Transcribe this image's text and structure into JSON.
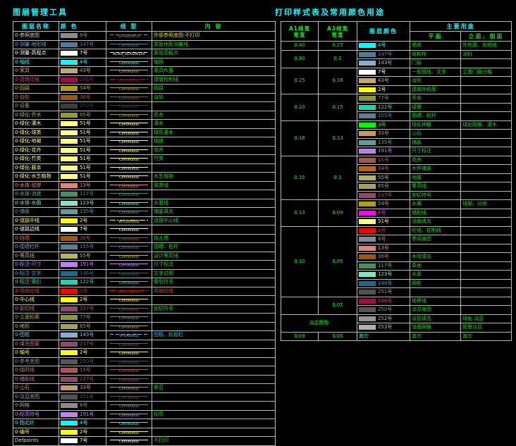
{
  "left_table": {
    "title": "图层管理工具",
    "headers": [
      "图层名称",
      "颜  色",
      "线  型",
      "内  容"
    ],
    "rows": [
      {
        "n": "0-参照底图",
        "nc": "#cfcfcf",
        "sw": "#8c8c8c",
        "no": "8号",
        "lt": "d",
        "ln": "W-DASHED2",
        "ct": "外部参照底图·不打印",
        "cc": "#d8d830"
      },
      {
        "n": "0-测量-地形线",
        "nc": "#6fa7c7",
        "sw": "#4f7d96",
        "no": "147号",
        "lt": "c",
        "ln": "Continuous",
        "ct": "原始地形测量线"
      },
      {
        "n": "0-测量-高程点",
        "nc": "#ffffff",
        "sw": "#ffffff",
        "no": "7号",
        "lt": "d",
        "ln": "ACAD_ISO02W100",
        "ct": "原始高程点"
      },
      {
        "n": "0-轴线",
        "nc": "#00ffff",
        "sw": "#00ffff",
        "no": "4号",
        "lt": "c",
        "ln": "Continuous",
        "ct": "轴网"
      },
      {
        "n": "0-家具",
        "nc": "#c4a96a",
        "sw": "#c4a96a",
        "no": "43号",
        "lt": "c",
        "ln": "Continuous",
        "ct": "家具布置"
      },
      {
        "n": "0-建筑红线",
        "nc": "#d0347f",
        "sw": "#9c1049",
        "no": "236号",
        "lt": "dd",
        "ln": "W-CENTER2",
        "ct": "建筑控制线"
      },
      {
        "n": "0-园路",
        "nc": "#c8b818",
        "sw": "#afa018",
        "no": "54号",
        "lt": "c",
        "ln": "Continuous",
        "ct": "园路"
      },
      {
        "n": "0-台阶",
        "nc": "#c87a28",
        "sw": "#a05511",
        "no": "36号",
        "lt": "c",
        "ln": "Continuous",
        "ct": "台阶"
      },
      {
        "n": "0-设备",
        "nc": "#9a9a9a",
        "sw": "#3d3d3d",
        "no": "250号",
        "lt": "c",
        "ln": "Continuous",
        "ct": ""
      },
      {
        "n": "0-绿化-乔木",
        "nc": "#aab24a",
        "sw": "#95993f",
        "no": "65号",
        "lt": "c",
        "ln": "Continuous",
        "ct": "乔木"
      },
      {
        "n": "0-绿化-灌木",
        "nc": "#feff7e",
        "sw": "#feff7e",
        "no": "51号",
        "lt": "c",
        "ln": "Continuous",
        "ct": "灌木"
      },
      {
        "n": "0-绿化-球类",
        "nc": "#feff7e",
        "sw": "#feff7e",
        "no": "51号",
        "lt": "c",
        "ln": "Continuous",
        "ct": "球形灌木"
      },
      {
        "n": "0-绿化-地被",
        "nc": "#feff7e",
        "sw": "#feff7e",
        "no": "51号",
        "lt": "c",
        "ln": "Continuous",
        "ct": "地被"
      },
      {
        "n": "0-绿化-花卉",
        "nc": "#feff7e",
        "sw": "#feff7e",
        "no": "51号",
        "lt": "c",
        "ln": "Continuous",
        "ct": "花卉"
      },
      {
        "n": "0-绿化-竹类",
        "nc": "#feff7e",
        "sw": "#feff7e",
        "no": "51号",
        "lt": "c",
        "ln": "Continuous",
        "ct": "竹类"
      },
      {
        "n": "0-绿化-藤本",
        "nc": "#feff7e",
        "sw": "#feff7e",
        "no": "51号",
        "lt": "c",
        "ln": "Continuous",
        "ct": ""
      },
      {
        "n": "0-绿化-水生植物",
        "nc": "#feff7e",
        "sw": "#feff7e",
        "no": "51号",
        "lt": "c",
        "ln": "Continuous",
        "ct": "水生植物"
      },
      {
        "n": "0-水体-驳岸",
        "nc": "#e87f7f",
        "sw": "#e87f7f",
        "no": "13号",
        "lt": "c",
        "ln": "Continuous",
        "ct": "驳岸线"
      },
      {
        "n": "0-水体-池底",
        "nc": "#57b57f",
        "sw": "#4a8c66",
        "no": "117号",
        "lt": "c",
        "ln": "Continuous",
        "ct": ""
      },
      {
        "n": "0-水体-水面",
        "nc": "#7fe6c6",
        "sw": "#7fe6c6",
        "no": "123号",
        "lt": "c",
        "ln": "Continuous",
        "ct": "水面线"
      },
      {
        "n": "0-铺装",
        "nc": "#5a9e9e",
        "sw": "#5a9e9e",
        "no": "135号",
        "lt": "c",
        "ln": "Continuous",
        "ct": "铺装填充"
      },
      {
        "n": "0-道路中线",
        "nc": "#ffff00",
        "sw": "#ffff00",
        "no": "2号",
        "lt": "dd",
        "ln": "W-CENTER2",
        "ct": "道路中心线"
      },
      {
        "n": "0-道路边线",
        "nc": "#ffffff",
        "sw": "#ffffff",
        "no": "7号",
        "lt": "c",
        "ln": "Continuous",
        "ct": ""
      },
      {
        "n": "0-挡墙",
        "nc": "#c87a28",
        "sw": "#a05511",
        "no": "36号",
        "lt": "c",
        "ln": "Continuous",
        "ct": "挡土墙"
      },
      {
        "n": "0-围墙栏杆",
        "nc": "#6f9cc0",
        "sw": "#53809e",
        "no": "155号",
        "lt": "c",
        "ln": "Continuous",
        "ct": "围墙、栏杆"
      },
      {
        "n": "0-等高线",
        "nc": "#b3b465",
        "sw": "#b3b465",
        "no": "55号",
        "lt": "c",
        "ln": "Continuous",
        "ct": "设计等高线"
      },
      {
        "n": "0-标注-尺寸",
        "nc": "#bf80f2",
        "sw": "#bf80f2",
        "no": "191号",
        "lt": "c",
        "ln": "Continuous",
        "ct": "尺寸标注"
      },
      {
        "n": "0-标注-文字",
        "nc": "#2f9fd0",
        "sw": "#176b8f",
        "no": "146号",
        "lt": "c",
        "ln": "Continuous",
        "ct": "文字说明"
      },
      {
        "n": "0-标注-索引",
        "nc": "#10dcb0",
        "sw": "#10dcb0",
        "no": "122号",
        "lt": "c",
        "ln": "Continuous",
        "ct": "索引符号"
      },
      {
        "n": "0-用地红线",
        "nc": "#ff2020",
        "sw": "#ff0000",
        "no": "1号",
        "lt": "dd",
        "ln": "W-CENTER2",
        "ct": "用地红线",
        "cc": "#ff2020"
      },
      {
        "n": "0-中心线",
        "nc": "#ffff00",
        "sw": "#ffff00",
        "no": "2号",
        "lt": "c",
        "ln": "Continuous",
        "ct": ""
      },
      {
        "n": "0-剖切线",
        "nc": "#c06a93",
        "sw": "#8f4a6b",
        "no": "237号",
        "lt": "c",
        "ln": "Continuous",
        "ct": "剖切符号"
      },
      {
        "n": "0-立面轮廓",
        "nc": "#9db34a",
        "sw": "#87993d",
        "no": "77号",
        "lt": "c",
        "ln": "Continuous",
        "ct": ""
      },
      {
        "n": "0-地形",
        "nc": "#b8b96e",
        "sw": "#a3a45c",
        "no": "65号",
        "lt": "c",
        "ln": "Continuous",
        "ct": ""
      },
      {
        "n": "0-图框",
        "nc": "#85b1cc",
        "sw": "#85b1cc",
        "no": "143号",
        "lt": "d",
        "ln": "W-DASHED",
        "ct": "图框、标题栏",
        "cc": "#2fb3d9"
      },
      {
        "n": "0-填充图案",
        "nc": "#c06a93",
        "sw": "#8f4a6b",
        "no": "237号",
        "lt": "c",
        "ln": "Continuous",
        "ct": ""
      },
      {
        "n": "0-轴号",
        "nc": "#ffff00",
        "sw": "#ffff00",
        "no": "2号",
        "lt": "c",
        "ln": "Continuous",
        "ct": ""
      },
      {
        "n": "0-参考底图",
        "nc": "#8a8a8a",
        "sw": "#565656",
        "no": "250号",
        "lt": "c",
        "ln": "Continuous",
        "ct": ""
      },
      {
        "n": "0-临时线",
        "nc": "#c07878",
        "sw": "#a05858",
        "no": "15号",
        "lt": "c",
        "ln": "Continuous",
        "ct": ""
      },
      {
        "n": "0-辅助线",
        "nc": "#c06a93",
        "sw": "#8f4a6b",
        "no": "237号",
        "lt": "c",
        "ln": "Continuous",
        "ct": ""
      },
      {
        "n": "0-山石",
        "nc": "#c69a60",
        "sw": "#c69a60",
        "no": "33号",
        "lt": "c",
        "ln": "Continuous",
        "ct": "景石"
      },
      {
        "n": "0-淡显底图",
        "nc": "#9a9a9a",
        "sw": "#525252",
        "no": "251号",
        "lt": "c",
        "ln": "Continuous",
        "ct": ""
      },
      {
        "n": "0-网格",
        "nc": "#a8a8a8",
        "sw": "#8a8a8a",
        "no": "8号",
        "lt": "c",
        "ln": "Continuous",
        "ct": ""
      },
      {
        "n": "0-标高符号",
        "nc": "#bf80f2",
        "sw": "#bf80f2",
        "no": "191号",
        "lt": "c",
        "ln": "Continuous",
        "ct": "标高"
      },
      {
        "n": "0-指北针",
        "nc": "#00ffff",
        "sw": "#00ffff",
        "no": "4号",
        "lt": "c",
        "ln": "Continuous",
        "ct": ""
      },
      {
        "n": "0-编号",
        "nc": "#ffff00",
        "sw": "#ffff00",
        "no": "2号",
        "lt": "c",
        "ln": "Continuous",
        "ct": ""
      },
      {
        "n": "Defpoints",
        "nc": "#d9d9d9",
        "sw": "#ffffff",
        "no": "7号",
        "lt": "c",
        "ln": "Continuous",
        "ct": "不打印"
      }
    ]
  },
  "right_table": {
    "title": "打印样式表及常用颜色用途",
    "headers": {
      "a1_1": "A1线宽",
      "a1_2": "笔宽",
      "a3_1": "A3线宽",
      "a3_2": "笔宽",
      "color": "图层颜色",
      "usage": "主要用途",
      "plan": "平面",
      "elev": "立面、剖面"
    },
    "groups": [
      {
        "a1": "0.40",
        "a3": "0.25",
        "rows": [
          {
            "sw": "#00ffff",
            "no": "4号",
            "tc": "#00ffff",
            "p": "墙体",
            "e": "外轮廓、剖断线"
          }
        ]
      },
      {
        "a1": "0.30",
        "a3": "0.2",
        "rows": [
          {
            "sw": "#4f7d96",
            "no": "147号",
            "p": "结构柱",
            "e": "涂料"
          },
          {
            "sw": "#85b1cc",
            "no": "143号",
            "p": "门窗"
          }
        ]
      },
      {
        "a1": "0.25",
        "a3": "0.18",
        "rows": [
          {
            "sw": "#ffffff",
            "no": "7号",
            "p": "一般图线、文字",
            "e": "立面门窗分格"
          },
          {
            "sw": "#c4a96a",
            "no": "43号",
            "p": "台阶"
          },
          {
            "sw": "#ffff00",
            "no": "2号",
            "p": "建筑外轮廓"
          }
        ]
      },
      {
        "a1": "0.20",
        "a3": "0.15",
        "rows": [
          {
            "sw": "#87993d",
            "no": "77号",
            "p": "乔木"
          },
          {
            "sw": "#10dcb0",
            "no": "122号",
            "p": "绿篱"
          },
          {
            "sw": "#53809e",
            "no": "155号",
            "p": "围墙、栏杆"
          }
        ]
      },
      {
        "a1": "0.18",
        "a3": "0.13",
        "rows": [
          {
            "sw": "#00ff00",
            "no": "3号",
            "p": "绿化种植",
            "e": "绿化配景、灌木"
          },
          {
            "sw": "#c69a60",
            "no": "33号",
            "p": "山石"
          },
          {
            "sw": "#5a9e9e",
            "no": "135号",
            "p": "铺装"
          },
          {
            "sw": "#bf80f2",
            "no": "191号",
            "p": "尺寸标注"
          }
        ]
      },
      {
        "a1": "0.15",
        "a3": "0.1",
        "rows": [
          {
            "sw": "#a05858",
            "no": "15号",
            "p": "花卉"
          },
          {
            "sw": "#bf6512",
            "no": "34号",
            "p": "木作铺装"
          },
          {
            "sw": "#b3b465",
            "no": "55号",
            "p": "地被"
          },
          {
            "sw": "#a3a45c",
            "no": "65号",
            "p": "等高线"
          },
          {
            "sw": "#8f4a6b",
            "no": "237号",
            "p": "剖切符号"
          }
        ]
      },
      {
        "a1": "0.13",
        "a3": "0.09",
        "rows": [
          {
            "sw": "#afa018",
            "no": "54号",
            "p": "水景",
            "e": "线脚、分格"
          },
          {
            "sw": "#ff00ff",
            "no": "6号",
            "tc": "#ff00ff",
            "p": "辅助线"
          },
          {
            "sw": "#feff7e",
            "no": "51号",
            "p": "浅色填充"
          }
        ]
      },
      {
        "a1": "0.10",
        "a3": "0.05",
        "rows": [
          {
            "sw": "#ff0000",
            "no": "1号",
            "tc": "#ff2020",
            "p": "红线、控制线"
          },
          {
            "sw": "#8a8a8a",
            "no": "8号",
            "p": "参照底图"
          },
          {
            "sw": "#e87f7f",
            "no": "13号",
            "p": ""
          },
          {
            "sw": "#a05511",
            "no": "36号",
            "tc": "#c87a28",
            "p": "木纹填充"
          },
          {
            "sw": "#4a8c66",
            "no": "117号",
            "tc": "#57b57f",
            "p": "草地"
          },
          {
            "sw": "#7fe6c6",
            "no": "123号",
            "p": "水面"
          },
          {
            "sw": "#176b8f",
            "no": "146号",
            "tc": "#2f9fd0",
            "p": "阴影"
          },
          {
            "sw": "#525252",
            "no": "251号",
            "tc": "#9a9a9a",
            "p": ""
          }
        ]
      },
      {
        "a1": "",
        "a3": "0.05",
        "rows": [
          {
            "sw": "#9c1049",
            "no": "236号",
            "tc": "#d0347f",
            "p": "地界线"
          },
          {
            "sw": "#565656",
            "no": "250号",
            "tc": "#8a8a8a",
            "p": "淡显底图"
          }
        ]
      },
      {
        "a1": "淡显颜色",
        "a3": "",
        "merged": true,
        "rows": [
          {
            "sw": "#969696",
            "no": "252号",
            "tc": "#a8a8a8",
            "p": "淡显填充",
            "e": "绿化 淡显"
          },
          {
            "sw": "#b0b0b0",
            "no": "253号",
            "tc": "#b0b0b0",
            "p": "浅色网格",
            "e": "配景淡显"
          }
        ]
      },
      {
        "a1": "0.09",
        "a3": "0.05",
        "rows": [
          {
            "sw": "",
            "no": "其它",
            "tc": "#00ffff",
            "p": "其它",
            "e": "其它"
          }
        ]
      }
    ]
  }
}
